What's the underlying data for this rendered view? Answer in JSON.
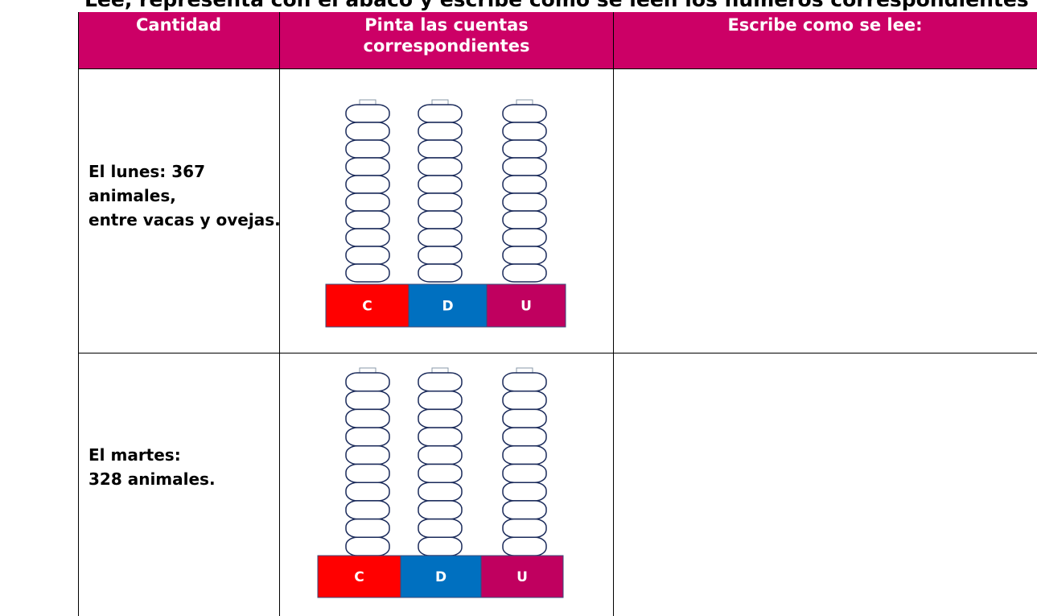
{
  "instruction": "Lee, representa con el ábaco y escribe cómo se leen los números correspondientes",
  "table": {
    "headers": [
      "Cantidad",
      "Pinta las cuentas correspondientes",
      "Escribe como se lee:"
    ],
    "rows": [
      {
        "quantity": [
          "El lunes: 367",
          "animales,",
          "entre vacas y ovejas."
        ],
        "abacus": [
          "C",
          "D",
          "U"
        ]
      },
      {
        "quantity": [
          "El martes:",
          "328 animales."
        ],
        "abacus": [
          "C",
          "D",
          "U"
        ]
      }
    ]
  }
}
